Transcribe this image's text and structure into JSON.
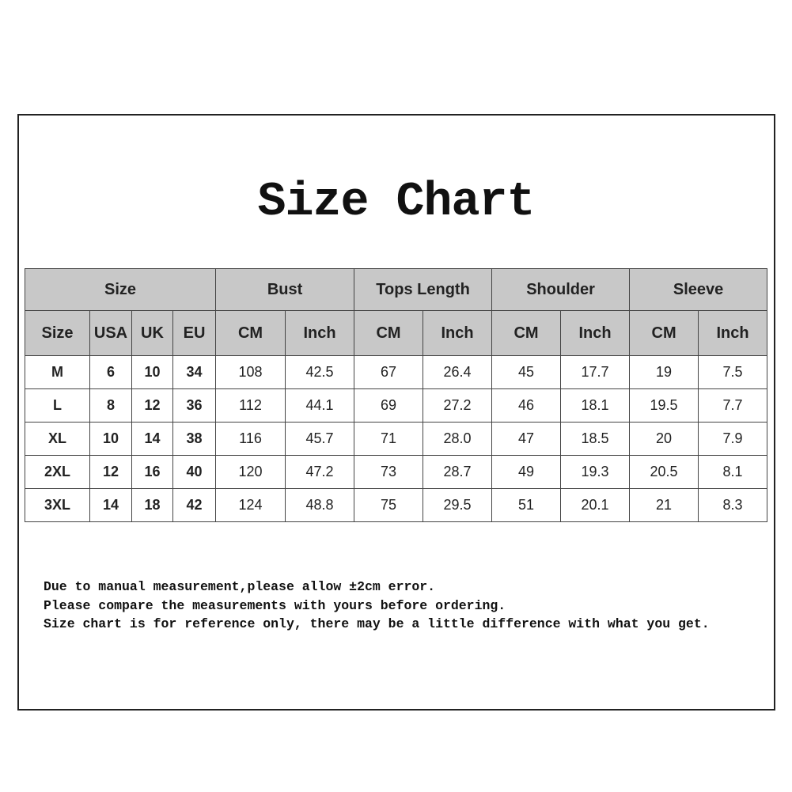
{
  "title": "Size Chart",
  "groups": [
    "Size",
    "Bust",
    "Tops Length",
    "Shoulder",
    "Sleeve"
  ],
  "subheaders": [
    "Size",
    "USA",
    "UK",
    "EU",
    "CM",
    "Inch",
    "CM",
    "Inch",
    "CM",
    "Inch",
    "CM",
    "Inch"
  ],
  "rows": [
    [
      "M",
      "6",
      "10",
      "34",
      "108",
      "42.5",
      "67",
      "26.4",
      "45",
      "17.7",
      "19",
      "7.5"
    ],
    [
      "L",
      "8",
      "12",
      "36",
      "112",
      "44.1",
      "69",
      "27.2",
      "46",
      "18.1",
      "19.5",
      "7.7"
    ],
    [
      "XL",
      "10",
      "14",
      "38",
      "116",
      "45.7",
      "71",
      "28.0",
      "47",
      "18.5",
      "20",
      "7.9"
    ],
    [
      "2XL",
      "12",
      "16",
      "40",
      "120",
      "47.2",
      "73",
      "28.7",
      "49",
      "19.3",
      "20.5",
      "8.1"
    ],
    [
      "3XL",
      "14",
      "18",
      "42",
      "124",
      "48.8",
      "75",
      "29.5",
      "51",
      "20.1",
      "21",
      "8.3"
    ]
  ],
  "notes": [
    "Due to manual measurement,please allow ±2cm error.",
    "Please compare the measurements with yours before ordering.",
    "Size chart is for reference only, there may be a little difference with what you get."
  ]
}
